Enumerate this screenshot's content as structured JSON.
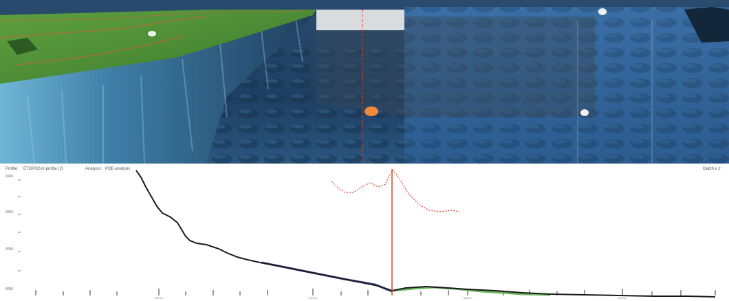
{
  "profile_header": {
    "profile_label": "Profile:",
    "profile_name": "ETOPO2v2-profile (2)",
    "analysis_label": "Analysis:",
    "analysis_name": "POE-analysis",
    "right_label": "Depth x 2"
  },
  "y_axis_labels": [
    "1000",
    "2000",
    "3000",
    "4000"
  ],
  "x_axis_labels": [
    "100 km",
    "200 km",
    "300 km",
    "400 km"
  ],
  "colors": {
    "profile_line": "#1a1a1a",
    "shelf_slope_fit": "#2b3a9a",
    "abyssal_fit": "#5ab04a",
    "foot_of_slope_marker": "#e04020",
    "analysis_curve": "#d83a2a",
    "ocean_deep": "#1c3a5c",
    "land": "#4f8a35"
  }
}
